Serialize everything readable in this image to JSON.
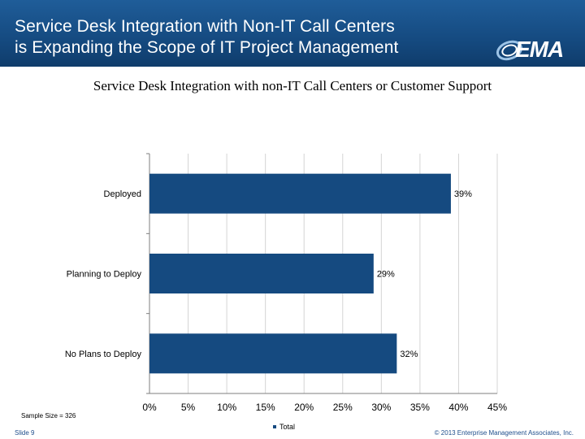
{
  "slide": {
    "title_line1": "Service Desk Integration with Non-IT Call Centers",
    "title_line2": "is Expanding the Scope of IT Project Management",
    "logo_text": "EMA",
    "sample_size": "Sample Size = 326",
    "slide_number": "Slide 9",
    "copyright": "© 2013 Enterprise Management Associates, Inc.",
    "header_color": "#154a80",
    "bar_color": "#154a80"
  },
  "chart_data": {
    "type": "bar",
    "orientation": "horizontal",
    "title": "Service Desk Integration with non-IT Call Centers or Customer Support",
    "categories": [
      "Deployed",
      "Planning to Deploy",
      "No Plans to Deploy"
    ],
    "series": [
      {
        "name": "Total",
        "values": [
          39,
          29,
          32
        ]
      }
    ],
    "data_labels": [
      "39%",
      "29%",
      "32%"
    ],
    "x_ticks": [
      "0%",
      "5%",
      "10%",
      "15%",
      "20%",
      "25%",
      "30%",
      "35%",
      "40%",
      "45%"
    ],
    "xlim": [
      0,
      45
    ],
    "grid": "vertical",
    "legend_position": "bottom"
  }
}
